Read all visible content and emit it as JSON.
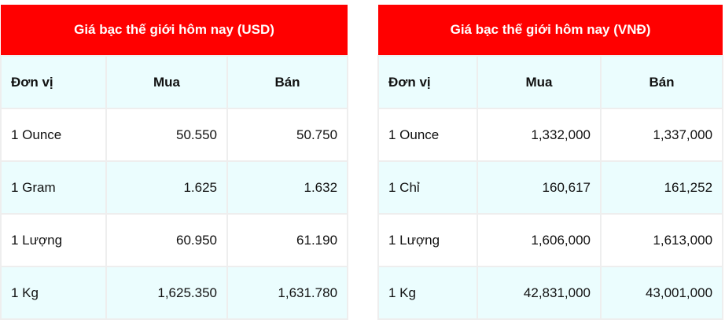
{
  "tables": [
    {
      "title": "Giá bạc thế giới hôm nay (USD)",
      "headers": [
        "Đơn vị",
        "Mua",
        "Bán"
      ],
      "rows": [
        [
          "1 Ounce",
          "50.550",
          "50.750"
        ],
        [
          "1 Gram",
          "1.625",
          "1.632"
        ],
        [
          "1 Lượng",
          "60.950",
          "61.190"
        ],
        [
          "1 Kg",
          "1,625.350",
          "1,631.780"
        ]
      ]
    },
    {
      "title": "Giá bạc thế giới hôm nay (VNĐ)",
      "headers": [
        "Đơn vị",
        "Mua",
        "Bán"
      ],
      "rows": [
        [
          "1 Ounce",
          "1,332,000",
          "1,337,000"
        ],
        [
          "1 Chỉ",
          "160,617",
          "161,252"
        ],
        [
          "1 Lượng",
          "1,606,000",
          "1,613,000"
        ],
        [
          "1 Kg",
          "42,831,000",
          "43,001,000"
        ]
      ]
    }
  ],
  "colors": {
    "title_bg": "#ff0000",
    "alt_row_bg": "#ebfdfe",
    "border": "#eeeeee"
  }
}
